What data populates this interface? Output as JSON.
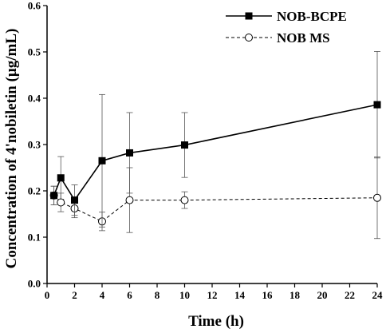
{
  "chart_data": {
    "type": "line",
    "xlabel": "Time (h)",
    "ylabel": "Concentration of 4'nobiletin (µg/mL)",
    "xlim": [
      0,
      24
    ],
    "ylim": [
      0,
      0.6
    ],
    "x_ticks": [
      0,
      2,
      4,
      6,
      8,
      10,
      12,
      14,
      16,
      18,
      20,
      22,
      24
    ],
    "y_ticks": [
      0.0,
      0.1,
      0.2,
      0.3,
      0.4,
      0.5,
      0.6
    ],
    "y_tick_labels": [
      "0.0",
      "0.1",
      "0.2",
      "0.3",
      "0.4",
      "0.5",
      "0.6"
    ],
    "grid": false,
    "legend_position": "top-right",
    "series": [
      {
        "name": "NOB-BCPE",
        "style": "solid",
        "marker": "filled-square",
        "color": "#000000",
        "x": [
          0.5,
          1,
          2,
          4,
          6,
          10,
          24
        ],
        "y": [
          0.19,
          0.228,
          0.18,
          0.265,
          0.282,
          0.299,
          0.386
        ],
        "err": [
          0.02,
          0.046,
          0.033,
          0.143,
          0.087,
          0.07,
          0.115
        ]
      },
      {
        "name": "NOB MS",
        "style": "dashed",
        "marker": "open-circle",
        "color": "#000000",
        "x": [
          0.5,
          1,
          2,
          4,
          6,
          10,
          24
        ],
        "y": [
          0.19,
          0.175,
          0.162,
          0.134,
          0.18,
          0.18,
          0.185
        ],
        "err": [
          0.02,
          0.02,
          0.02,
          0.02,
          0.07,
          0.018,
          0.088
        ]
      }
    ]
  }
}
